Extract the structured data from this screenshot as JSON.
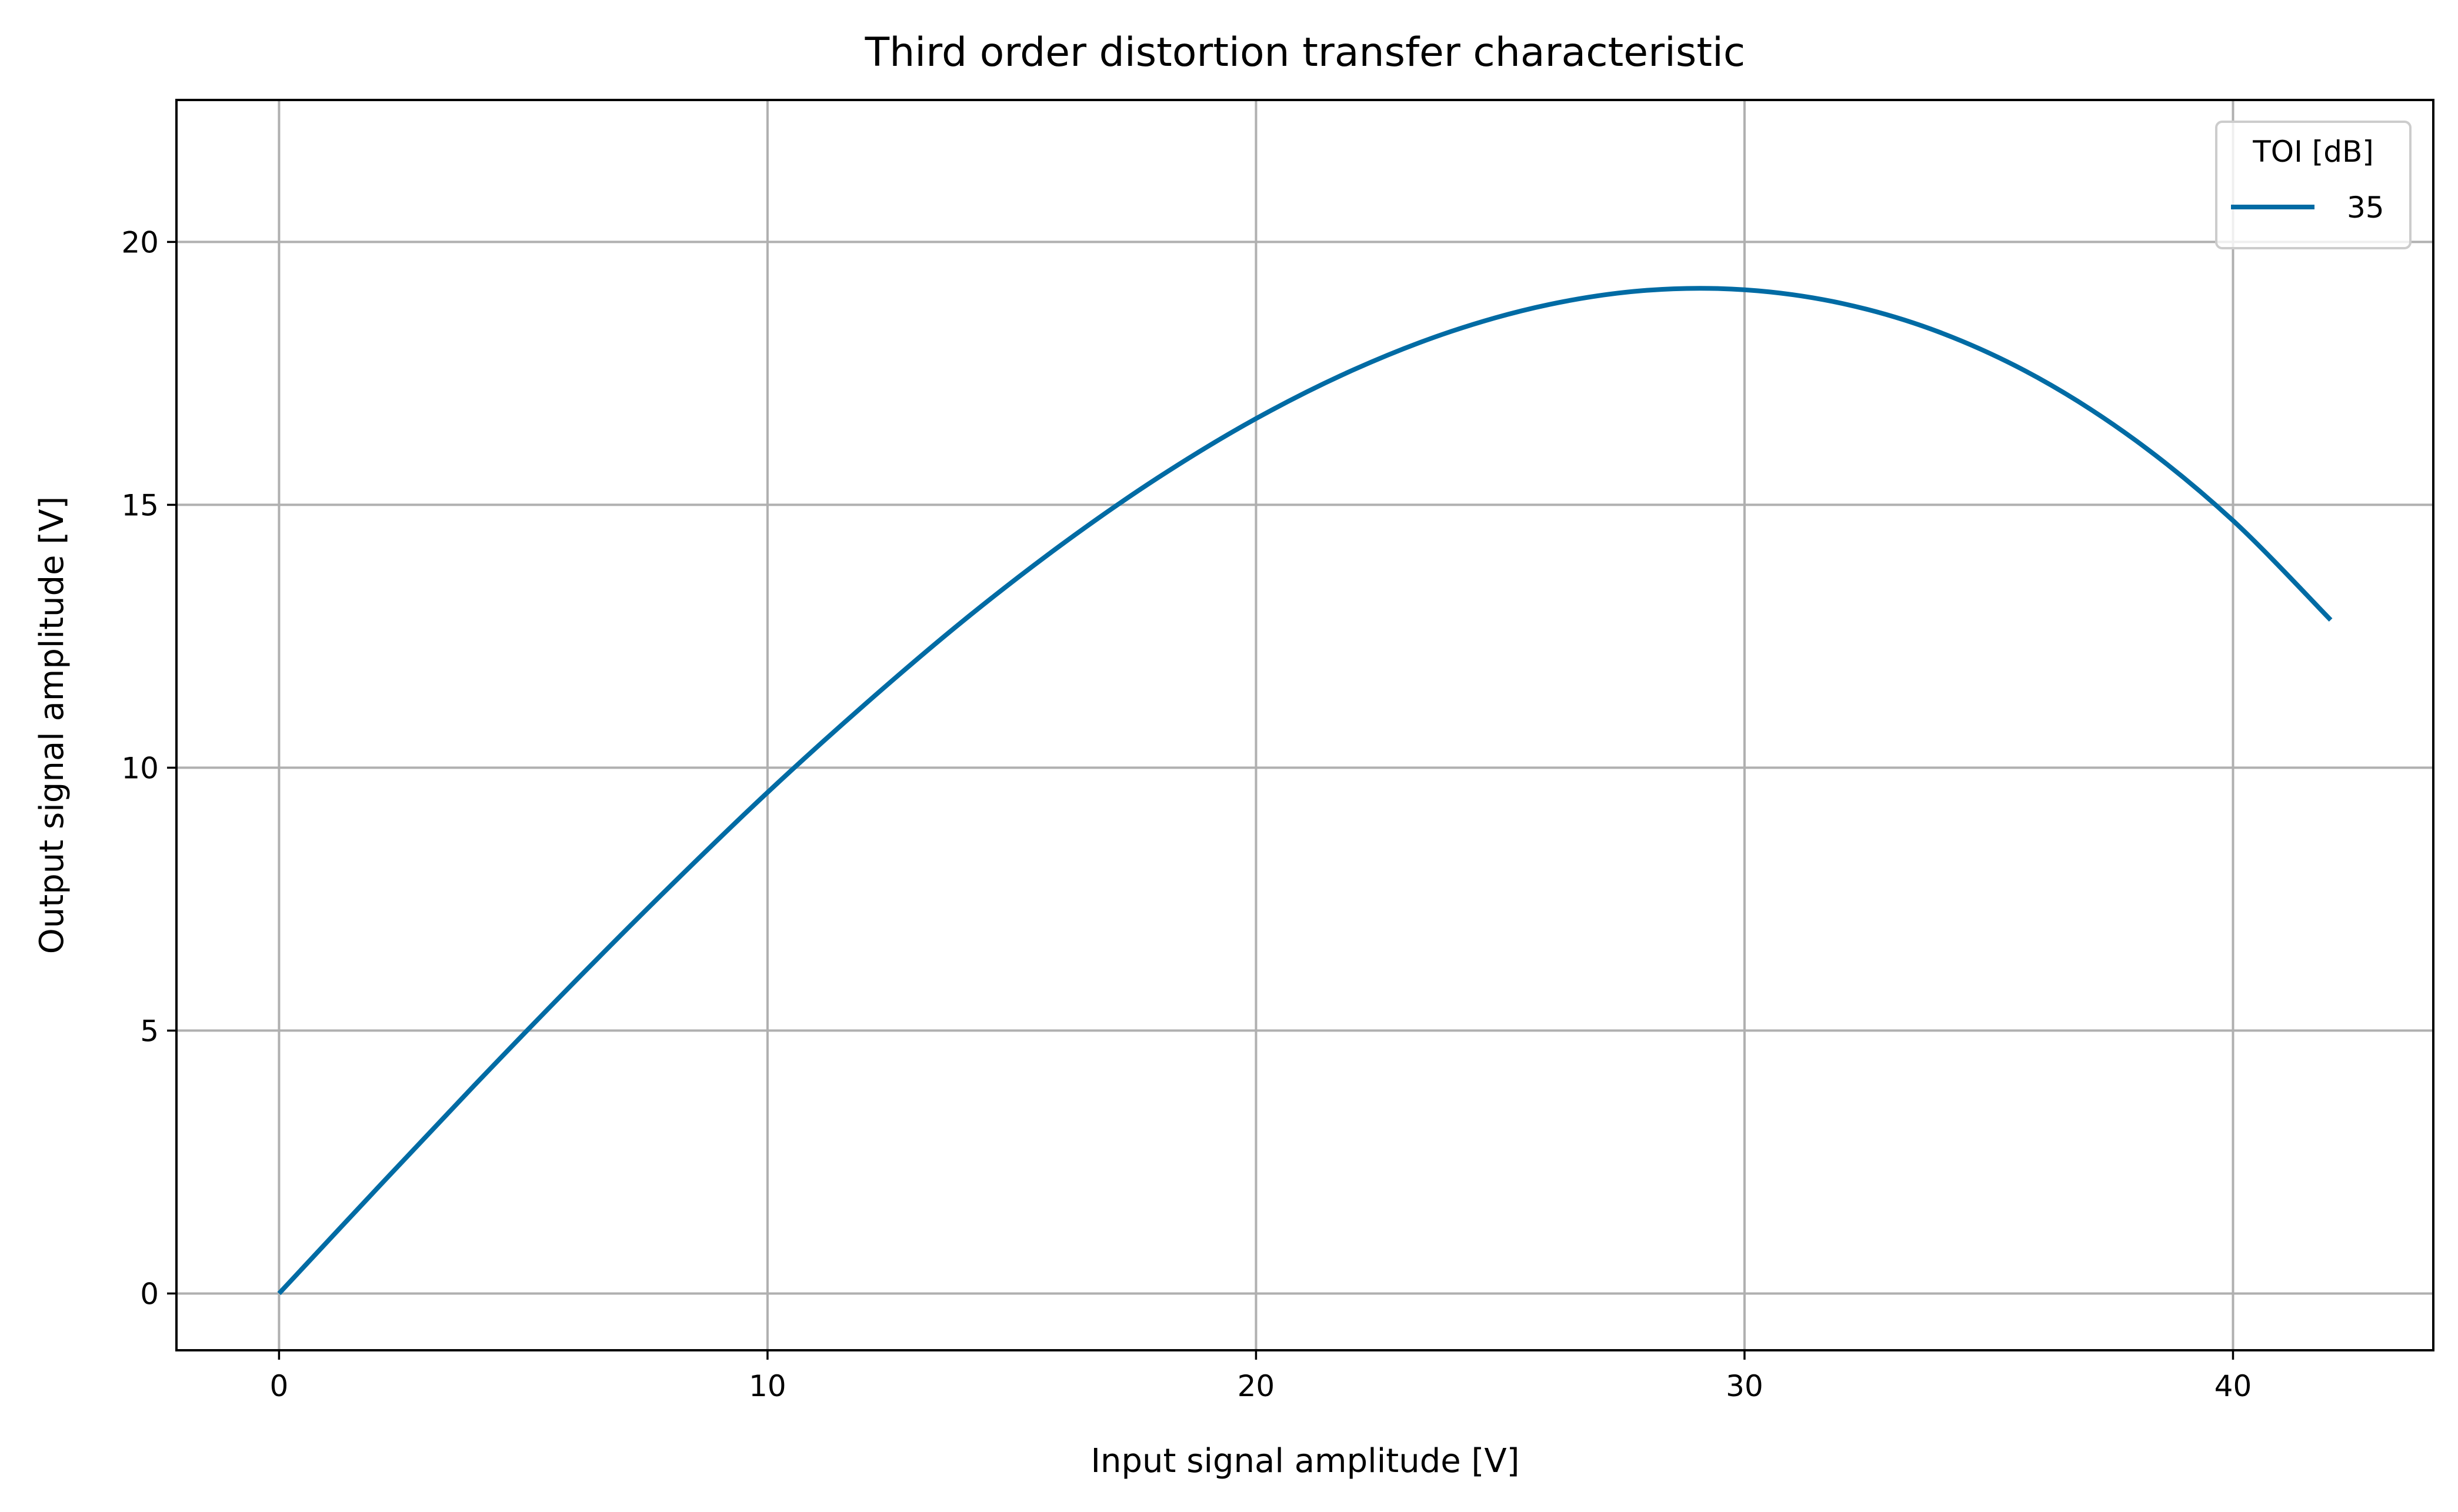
{
  "chart_data": {
    "type": "line",
    "title": "Third order distortion transfer characteristic",
    "xlabel": "Input signal amplitude [V]",
    "ylabel": "Output signal amplitude [V]",
    "xlim": [
      -2.1,
      44.1
    ],
    "ylim": [
      -1.08,
      22.7
    ],
    "xticks": [
      0,
      10,
      20,
      30,
      40
    ],
    "yticks": [
      0,
      5,
      10,
      15,
      20
    ],
    "grid": true,
    "legend": {
      "title": "TOI [dB]",
      "placement": "top-right"
    },
    "series": [
      {
        "name": "35",
        "color": "#006ba4",
        "x": [
          0,
          2,
          4,
          6,
          8,
          10,
          12,
          14,
          16,
          18,
          20,
          22,
          24,
          26,
          28,
          30,
          32,
          34,
          36,
          38,
          40,
          42
        ],
        "y": [
          0,
          1.99,
          3.96,
          5.88,
          7.74,
          9.53,
          11.21,
          12.79,
          14.23,
          15.52,
          16.64,
          17.57,
          18.3,
          18.81,
          19.08,
          19.09,
          18.83,
          18.28,
          17.42,
          16.23,
          14.7,
          12.81
        ]
      }
    ]
  }
}
